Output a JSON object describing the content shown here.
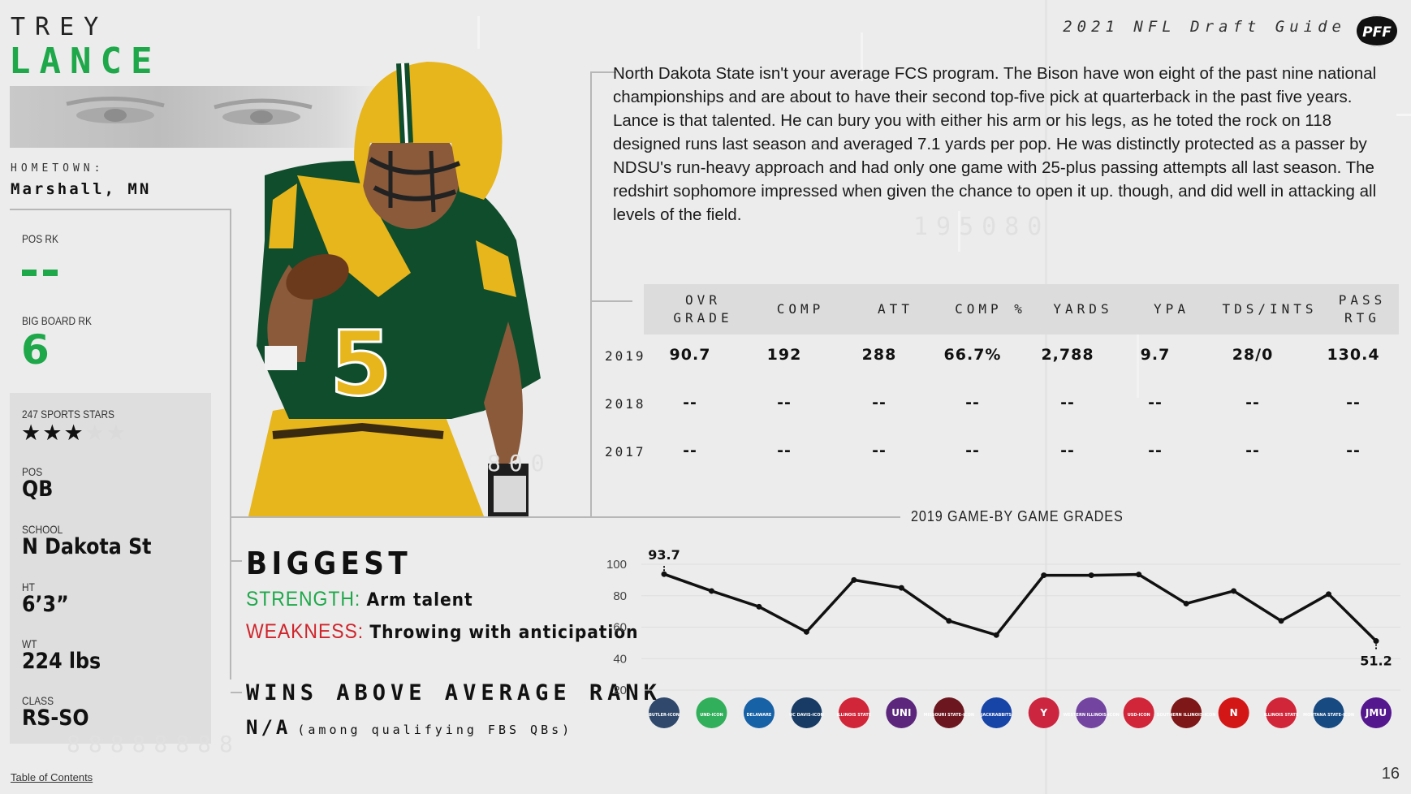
{
  "player": {
    "first_name": "TREY",
    "last_name": "LANCE",
    "hometown_label": "HOMETOWN:",
    "hometown": "Marshall, MN"
  },
  "header": {
    "guide_title": "2021 NFL Draft Guide",
    "logo_text": "PFF"
  },
  "ranks": {
    "pos_rk_label": "POS RK",
    "pos_rk_value": "--",
    "big_board_label": "BIG BOARD RK",
    "big_board_value": "6"
  },
  "profile": {
    "stars_label": "247 SPORTS STARS",
    "stars": 3,
    "stars_max": 5,
    "pos_label": "POS",
    "pos": "QB",
    "school_label": "SCHOOL",
    "school": "N Dakota St",
    "ht_label": "HT",
    "ht": "6’3”",
    "wt_label": "WT",
    "wt": "224 lbs",
    "class_label": "CLASS",
    "class": "RS-SO"
  },
  "bio": "North Dakota State isn't your average FCS program. The Bison have won eight of the past nine national championships and are about to have their second top-five pick at quarterback in the past five years. Lance is that talented. He can bury you with either his arm or his legs, as he toted the rock on 118 designed runs last season and averaged 7.1 yards per pop. He was distinctly protected as a passer by NDSU's run-heavy approach and had only one game with 25-plus passing attempts all last season. The redshirt sophomore impressed when given the chance to open it up. though, and did well in attacking all levels of the field.",
  "stats_table": {
    "headers": [
      "OVR GRADE",
      "COMP",
      "ATT",
      "COMP %",
      "YARDS",
      "YPA",
      "TDS/INTS",
      "PASS RTG"
    ],
    "rows": [
      {
        "year": "2019",
        "values": [
          "90.7",
          "192",
          "288",
          "66.7%",
          "2,788",
          "9.7",
          "28/0",
          "130.4"
        ]
      },
      {
        "year": "2018",
        "values": [
          "--",
          "--",
          "--",
          "--",
          "--",
          "--",
          "--",
          "--"
        ]
      },
      {
        "year": "2017",
        "values": [
          "--",
          "--",
          "--",
          "--",
          "--",
          "--",
          "--",
          "--"
        ]
      }
    ]
  },
  "biggest": {
    "title": "BIGGEST",
    "strength_label": "STRENGTH:",
    "strength": "Arm talent",
    "weakness_label": "WEAKNESS:",
    "weakness": "Throwing with anticipation"
  },
  "wins_above_average": {
    "title": "WINS ABOVE AVERAGE RANK",
    "value": "N/A",
    "note": "(among qualifying FBS QBs)"
  },
  "chart_data": {
    "type": "line",
    "title": "2019 GAME-BY GAME GRADES",
    "x": [
      1,
      2,
      3,
      4,
      5,
      6,
      7,
      8,
      9,
      10,
      11,
      12,
      13,
      14,
      15,
      16
    ],
    "values": [
      93.7,
      83,
      73,
      57,
      90,
      85,
      64,
      55,
      93,
      93,
      93.5,
      75,
      83,
      64,
      81,
      51.2
    ],
    "ylim": [
      20,
      100
    ],
    "yticks": [
      100,
      80,
      60,
      40,
      20
    ],
    "annotations": [
      {
        "index": 0,
        "label": "93.7"
      },
      {
        "index": 15,
        "label": "51.2"
      }
    ],
    "opponent_logos": [
      {
        "label": "BUTLER-ICON",
        "color": "#1b365d"
      },
      {
        "label": "UND-ICON",
        "color": "#1ea84a"
      },
      {
        "label": "DELAWARE",
        "color": "#00539f"
      },
      {
        "label": "UC DAVIS-ICON",
        "color": "#002855"
      },
      {
        "label": "ILLINOIS STATE",
        "color": "#ce1126"
      },
      {
        "label": "UNI",
        "color": "#4b116f"
      },
      {
        "label": "MISSOURI STATE-ICON",
        "color": "#5e0009"
      },
      {
        "label": "JACKRABBITS",
        "color": "#0033a0"
      },
      {
        "label": "Y",
        "color": "#c8102e"
      },
      {
        "label": "WESTERN ILLINOIS-ICON",
        "color": "#663399"
      },
      {
        "label": "USD-ICON",
        "color": "#ce1126"
      },
      {
        "label": "SOUTHERN ILLINOIS-ICON",
        "color": "#720000"
      },
      {
        "label": "N",
        "color": "#d00000"
      },
      {
        "label": "ILLINOIS STATE",
        "color": "#ce1126"
      },
      {
        "label": "MONTANA STATE-ICON",
        "color": "#003875"
      },
      {
        "label": "JMU",
        "color": "#450084"
      }
    ]
  },
  "footer": {
    "toc": "Table of Contents",
    "page": "16"
  }
}
